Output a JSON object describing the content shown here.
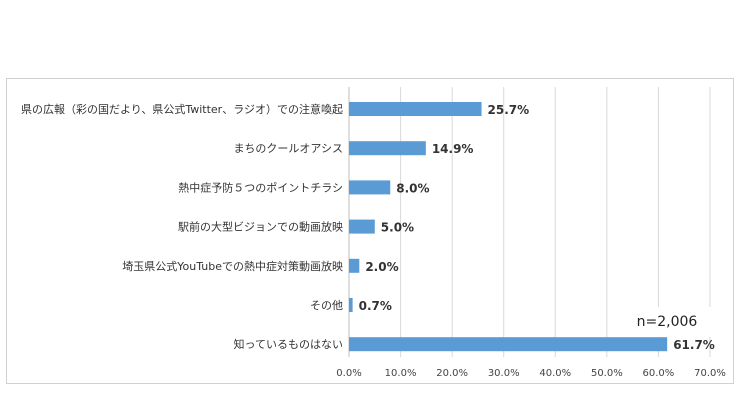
{
  "chart_data": {
    "type": "bar",
    "orientation": "horizontal",
    "categories": [
      "県の広報（彩の国だより、県公式Twitter、ラジオ）での注意喚起",
      "まちのクールオアシス",
      "熱中症予防５つのポイントチラシ",
      "駅前の大型ビジョンでの動画放映",
      "埼玉県公式YouTubeでの熱中症対策動画放映",
      "その他",
      "知っているものはない"
    ],
    "values": [
      25.7,
      14.9,
      8.0,
      5.0,
      2.0,
      0.7,
      61.7
    ],
    "data_labels": [
      "25.7%",
      "14.9%",
      "8.0%",
      "5.0%",
      "2.0%",
      "0.7%",
      "61.7%"
    ],
    "xlim": [
      0,
      70
    ],
    "x_ticks": [
      0,
      10,
      20,
      30,
      40,
      50,
      60,
      70
    ],
    "x_tick_labels": [
      "0.0%",
      "10.0%",
      "20.0%",
      "30.0%",
      "40.0%",
      "50.0%",
      "60.0%",
      "70.0%"
    ],
    "bar_color": "#5b9bd5",
    "grid": true,
    "annotation": "n=2,006"
  }
}
